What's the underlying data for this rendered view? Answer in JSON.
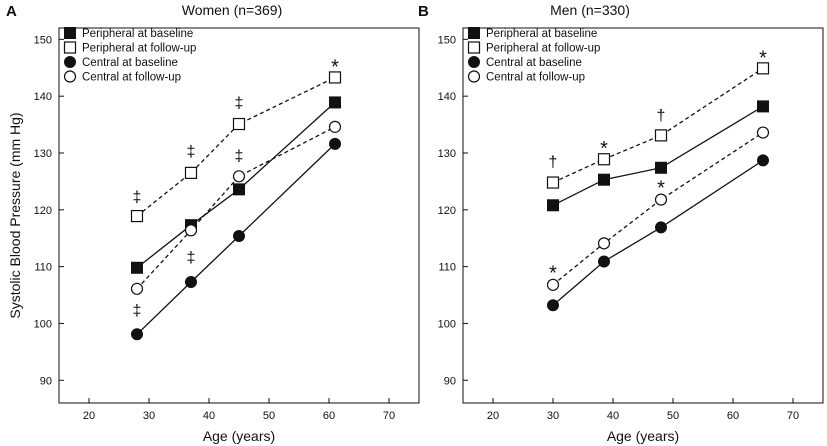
{
  "chart_data": [
    {
      "type": "line",
      "panel_label": "A",
      "title": "Women (n=369)",
      "xlabel": "Age  (years)",
      "ylabel": "Systolic  Blood  Pressure  (mm  Hg)",
      "xlim": [
        15,
        75
      ],
      "ylim": [
        86,
        152
      ],
      "xticks": [
        20,
        30,
        40,
        50,
        60,
        70
      ],
      "yticks": [
        90,
        100,
        110,
        120,
        130,
        140,
        150
      ],
      "grid": false,
      "legend_position": "top-left",
      "series": [
        {
          "name": "Peripheral at baseline",
          "marker": "square-filled",
          "line": "solid",
          "x": [
            28,
            37,
            45,
            61
          ],
          "y": [
            109.8,
            117.3,
            123.6,
            138.9
          ]
        },
        {
          "name": "Peripheral at follow-up",
          "marker": "square-open",
          "line": "dashed",
          "x": [
            28,
            37,
            45,
            61
          ],
          "y": [
            118.9,
            126.5,
            135.1,
            143.3
          ]
        },
        {
          "name": "Central at baseline",
          "marker": "circle-filled",
          "line": "solid",
          "x": [
            28,
            37,
            45,
            61
          ],
          "y": [
            98.1,
            107.3,
            115.4,
            131.6
          ]
        },
        {
          "name": "Central at follow-up",
          "marker": "circle-open",
          "line": "dashed",
          "x": [
            28,
            37,
            45,
            61
          ],
          "y": [
            106.1,
            116.4,
            125.9,
            134.6
          ]
        }
      ],
      "annotations": [
        {
          "text": "‡",
          "x": 28,
          "y": 122.3
        },
        {
          "text": "‡",
          "x": 28,
          "y": 102.3
        },
        {
          "text": "‡",
          "x": 37,
          "y": 130.3
        },
        {
          "text": "‡",
          "x": 37,
          "y": 111.6
        },
        {
          "text": "‡",
          "x": 45,
          "y": 138.8
        },
        {
          "text": "‡",
          "x": 45,
          "y": 129.5
        },
        {
          "text": "*",
          "x": 61,
          "y": 145.6
        }
      ]
    },
    {
      "type": "line",
      "panel_label": "B",
      "title": "Men (n=330)",
      "xlabel": "Age  (years)",
      "ylabel": "",
      "xlim": [
        15,
        75
      ],
      "ylim": [
        86,
        152
      ],
      "xticks": [
        20,
        30,
        40,
        50,
        60,
        70
      ],
      "yticks": [
        90,
        100,
        110,
        120,
        130,
        140,
        150
      ],
      "grid": false,
      "legend_position": "top-left",
      "series": [
        {
          "name": "Peripheral at baseline",
          "marker": "square-filled",
          "line": "solid",
          "x": [
            30,
            38.5,
            48,
            65
          ],
          "y": [
            120.8,
            125.3,
            127.4,
            138.2
          ]
        },
        {
          "name": "Peripheral at follow-up",
          "marker": "square-open",
          "line": "dashed",
          "x": [
            30,
            38.5,
            48,
            65
          ],
          "y": [
            124.8,
            128.9,
            133.1,
            144.9
          ]
        },
        {
          "name": "Central at baseline",
          "marker": "circle-filled",
          "line": "solid",
          "x": [
            30,
            38.5,
            48,
            65
          ],
          "y": [
            103.2,
            110.9,
            116.9,
            128.7
          ]
        },
        {
          "name": "Central at follow-up",
          "marker": "circle-open",
          "line": "dashed",
          "x": [
            30,
            38.5,
            48,
            65
          ],
          "y": [
            106.8,
            114.1,
            121.8,
            133.6
          ]
        }
      ],
      "annotations": [
        {
          "text": "†",
          "x": 30,
          "y": 128.4
        },
        {
          "text": "*",
          "x": 38.5,
          "y": 131.2
        },
        {
          "text": "†",
          "x": 48,
          "y": 136.6
        },
        {
          "text": "*",
          "x": 65,
          "y": 147.2
        },
        {
          "text": "*",
          "x": 30,
          "y": 109.3
        },
        {
          "text": "*",
          "x": 48,
          "y": 124.3
        }
      ]
    }
  ]
}
